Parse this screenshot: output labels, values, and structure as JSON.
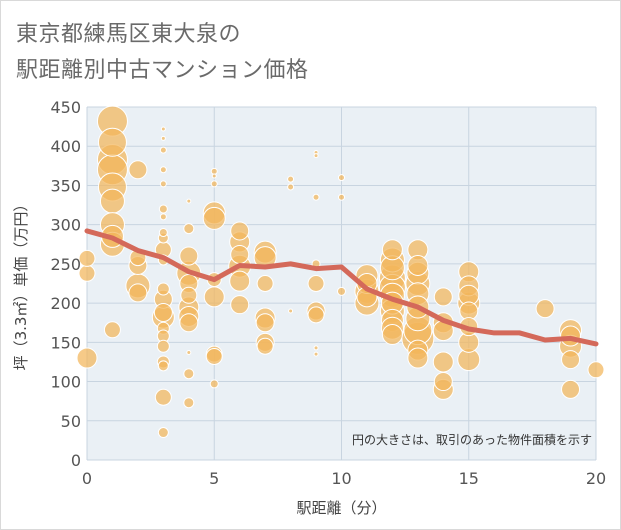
{
  "title": {
    "line1": "東京都練馬区東大泉の",
    "line2": "駅距離別中古マンション価格"
  },
  "colors": {
    "bubble": "#f2b65a",
    "bubble_stroke": "#ffffff",
    "line": "#d4695a",
    "grid": "#c8d4e0",
    "plot_bg": "#eaf0f5"
  },
  "note": "円の大きさは、取引のあった物件面積を示す",
  "chart_data": {
    "type": "scatter",
    "xlabel": "駅距離（分）",
    "ylabel": "坪（3.3㎡）単価（万円）",
    "xlim": [
      0,
      20
    ],
    "ylim": [
      0,
      450
    ],
    "xticks": [
      0,
      5,
      10,
      15,
      20
    ],
    "yticks": [
      0,
      50,
      100,
      150,
      200,
      250,
      300,
      350,
      400,
      450
    ],
    "grid": true,
    "series": [
      {
        "kind": "bubbles",
        "points": [
          {
            "x": 0,
            "y": 130,
            "s": 10
          },
          {
            "x": 0,
            "y": 238,
            "s": 8
          },
          {
            "x": 0,
            "y": 257,
            "s": 8
          },
          {
            "x": 1,
            "y": 432,
            "s": 15
          },
          {
            "x": 1,
            "y": 405,
            "s": 14
          },
          {
            "x": 1,
            "y": 383,
            "s": 15
          },
          {
            "x": 1,
            "y": 370,
            "s": 15
          },
          {
            "x": 1,
            "y": 348,
            "s": 14
          },
          {
            "x": 1,
            "y": 330,
            "s": 12
          },
          {
            "x": 1,
            "y": 300,
            "s": 12
          },
          {
            "x": 1,
            "y": 285,
            "s": 11
          },
          {
            "x": 1,
            "y": 275,
            "s": 12
          },
          {
            "x": 1,
            "y": 166,
            "s": 8
          },
          {
            "x": 2,
            "y": 370,
            "s": 9
          },
          {
            "x": 2,
            "y": 258,
            "s": 8
          },
          {
            "x": 2,
            "y": 248,
            "s": 9
          },
          {
            "x": 2,
            "y": 222,
            "s": 12
          },
          {
            "x": 2,
            "y": 213,
            "s": 9
          },
          {
            "x": 3,
            "y": 422,
            "s": 2
          },
          {
            "x": 3,
            "y": 410,
            "s": 2
          },
          {
            "x": 3,
            "y": 395,
            "s": 3
          },
          {
            "x": 3,
            "y": 370,
            "s": 3
          },
          {
            "x": 3,
            "y": 352,
            "s": 3
          },
          {
            "x": 3,
            "y": 320,
            "s": 4
          },
          {
            "x": 3,
            "y": 310,
            "s": 3
          },
          {
            "x": 3,
            "y": 290,
            "s": 4
          },
          {
            "x": 3,
            "y": 283,
            "s": 5
          },
          {
            "x": 3,
            "y": 268,
            "s": 8
          },
          {
            "x": 3,
            "y": 255,
            "s": 5
          },
          {
            "x": 3,
            "y": 218,
            "s": 6
          },
          {
            "x": 3,
            "y": 205,
            "s": 9
          },
          {
            "x": 3,
            "y": 188,
            "s": 9
          },
          {
            "x": 3,
            "y": 182,
            "s": 11
          },
          {
            "x": 3,
            "y": 168,
            "s": 6
          },
          {
            "x": 3,
            "y": 158,
            "s": 6
          },
          {
            "x": 3,
            "y": 145,
            "s": 6
          },
          {
            "x": 3,
            "y": 125,
            "s": 6
          },
          {
            "x": 3,
            "y": 120,
            "s": 5
          },
          {
            "x": 3,
            "y": 80,
            "s": 8
          },
          {
            "x": 3,
            "y": 35,
            "s": 5
          },
          {
            "x": 4,
            "y": 330,
            "s": 2
          },
          {
            "x": 4,
            "y": 295,
            "s": 5
          },
          {
            "x": 4,
            "y": 260,
            "s": 9
          },
          {
            "x": 4,
            "y": 238,
            "s": 12
          },
          {
            "x": 4,
            "y": 225,
            "s": 9
          },
          {
            "x": 4,
            "y": 210,
            "s": 8
          },
          {
            "x": 4,
            "y": 195,
            "s": 10
          },
          {
            "x": 4,
            "y": 183,
            "s": 10
          },
          {
            "x": 4,
            "y": 175,
            "s": 9
          },
          {
            "x": 4,
            "y": 137,
            "s": 2
          },
          {
            "x": 4,
            "y": 110,
            "s": 5
          },
          {
            "x": 4,
            "y": 73,
            "s": 5
          },
          {
            "x": 5,
            "y": 368,
            "s": 3
          },
          {
            "x": 5,
            "y": 362,
            "s": 2
          },
          {
            "x": 5,
            "y": 352,
            "s": 3
          },
          {
            "x": 5,
            "y": 315,
            "s": 11
          },
          {
            "x": 5,
            "y": 308,
            "s": 11
          },
          {
            "x": 5,
            "y": 230,
            "s": 7
          },
          {
            "x": 5,
            "y": 208,
            "s": 10
          },
          {
            "x": 5,
            "y": 135,
            "s": 8
          },
          {
            "x": 5,
            "y": 132,
            "s": 8
          },
          {
            "x": 5,
            "y": 97,
            "s": 4
          },
          {
            "x": 6,
            "y": 292,
            "s": 9
          },
          {
            "x": 6,
            "y": 278,
            "s": 10
          },
          {
            "x": 6,
            "y": 262,
            "s": 9
          },
          {
            "x": 6,
            "y": 247,
            "s": 11
          },
          {
            "x": 6,
            "y": 228,
            "s": 10
          },
          {
            "x": 6,
            "y": 198,
            "s": 9
          },
          {
            "x": 7,
            "y": 265,
            "s": 11
          },
          {
            "x": 7,
            "y": 258,
            "s": 11
          },
          {
            "x": 7,
            "y": 225,
            "s": 8
          },
          {
            "x": 7,
            "y": 181,
            "s": 10
          },
          {
            "x": 7,
            "y": 175,
            "s": 9
          },
          {
            "x": 7,
            "y": 150,
            "s": 9
          },
          {
            "x": 7,
            "y": 145,
            "s": 8
          },
          {
            "x": 8,
            "y": 358,
            "s": 3
          },
          {
            "x": 8,
            "y": 348,
            "s": 3
          },
          {
            "x": 8,
            "y": 190,
            "s": 2
          },
          {
            "x": 9,
            "y": 392,
            "s": 2
          },
          {
            "x": 9,
            "y": 388,
            "s": 2
          },
          {
            "x": 9,
            "y": 335,
            "s": 3
          },
          {
            "x": 9,
            "y": 250,
            "s": 4
          },
          {
            "x": 9,
            "y": 225,
            "s": 8
          },
          {
            "x": 9,
            "y": 190,
            "s": 9
          },
          {
            "x": 9,
            "y": 185,
            "s": 8
          },
          {
            "x": 9,
            "y": 143,
            "s": 2
          },
          {
            "x": 9,
            "y": 135,
            "s": 2
          },
          {
            "x": 10,
            "y": 360,
            "s": 3
          },
          {
            "x": 10,
            "y": 335,
            "s": 3
          },
          {
            "x": 10,
            "y": 215,
            "s": 4
          },
          {
            "x": 11,
            "y": 235,
            "s": 11
          },
          {
            "x": 11,
            "y": 225,
            "s": 10
          },
          {
            "x": 11,
            "y": 215,
            "s": 12
          },
          {
            "x": 11,
            "y": 208,
            "s": 10
          },
          {
            "x": 11,
            "y": 200,
            "s": 12
          },
          {
            "x": 12,
            "y": 268,
            "s": 10
          },
          {
            "x": 12,
            "y": 255,
            "s": 12
          },
          {
            "x": 12,
            "y": 245,
            "s": 12
          },
          {
            "x": 12,
            "y": 232,
            "s": 13
          },
          {
            "x": 12,
            "y": 220,
            "s": 13
          },
          {
            "x": 12,
            "y": 210,
            "s": 12
          },
          {
            "x": 12,
            "y": 200,
            "s": 11
          },
          {
            "x": 12,
            "y": 190,
            "s": 12
          },
          {
            "x": 12,
            "y": 178,
            "s": 11
          },
          {
            "x": 12,
            "y": 168,
            "s": 11
          },
          {
            "x": 12,
            "y": 160,
            "s": 10
          },
          {
            "x": 13,
            "y": 268,
            "s": 10
          },
          {
            "x": 13,
            "y": 248,
            "s": 10
          },
          {
            "x": 13,
            "y": 238,
            "s": 11
          },
          {
            "x": 13,
            "y": 225,
            "s": 12
          },
          {
            "x": 13,
            "y": 212,
            "s": 11
          },
          {
            "x": 13,
            "y": 195,
            "s": 11
          },
          {
            "x": 13,
            "y": 180,
            "s": 12
          },
          {
            "x": 13,
            "y": 165,
            "s": 14
          },
          {
            "x": 13,
            "y": 155,
            "s": 16
          },
          {
            "x": 13,
            "y": 140,
            "s": 10
          },
          {
            "x": 13,
            "y": 130,
            "s": 10
          },
          {
            "x": 14,
            "y": 208,
            "s": 9
          },
          {
            "x": 14,
            "y": 175,
            "s": 10
          },
          {
            "x": 14,
            "y": 165,
            "s": 10
          },
          {
            "x": 14,
            "y": 125,
            "s": 10
          },
          {
            "x": 14,
            "y": 100,
            "s": 9
          },
          {
            "x": 14,
            "y": 90,
            "s": 10
          },
          {
            "x": 15,
            "y": 240,
            "s": 10
          },
          {
            "x": 15,
            "y": 222,
            "s": 10
          },
          {
            "x": 15,
            "y": 210,
            "s": 10
          },
          {
            "x": 15,
            "y": 200,
            "s": 11
          },
          {
            "x": 15,
            "y": 190,
            "s": 9
          },
          {
            "x": 15,
            "y": 170,
            "s": 9
          },
          {
            "x": 15,
            "y": 150,
            "s": 10
          },
          {
            "x": 15,
            "y": 128,
            "s": 11
          },
          {
            "x": 18,
            "y": 193,
            "s": 9
          },
          {
            "x": 19,
            "y": 165,
            "s": 11
          },
          {
            "x": 19,
            "y": 158,
            "s": 10
          },
          {
            "x": 19,
            "y": 145,
            "s": 11
          },
          {
            "x": 19,
            "y": 128,
            "s": 9
          },
          {
            "x": 19,
            "y": 90,
            "s": 9
          },
          {
            "x": 20,
            "y": 115,
            "s": 8
          }
        ]
      },
      {
        "kind": "line",
        "x": [
          0,
          1,
          2,
          3,
          4,
          5,
          6,
          7,
          8,
          9,
          10,
          11,
          12,
          13,
          14,
          15,
          16,
          17,
          18,
          19,
          20
        ],
        "y": [
          292,
          283,
          267,
          258,
          240,
          230,
          248,
          246,
          250,
          244,
          246,
          218,
          205,
          195,
          178,
          167,
          162,
          162,
          153,
          155,
          148
        ]
      }
    ]
  }
}
